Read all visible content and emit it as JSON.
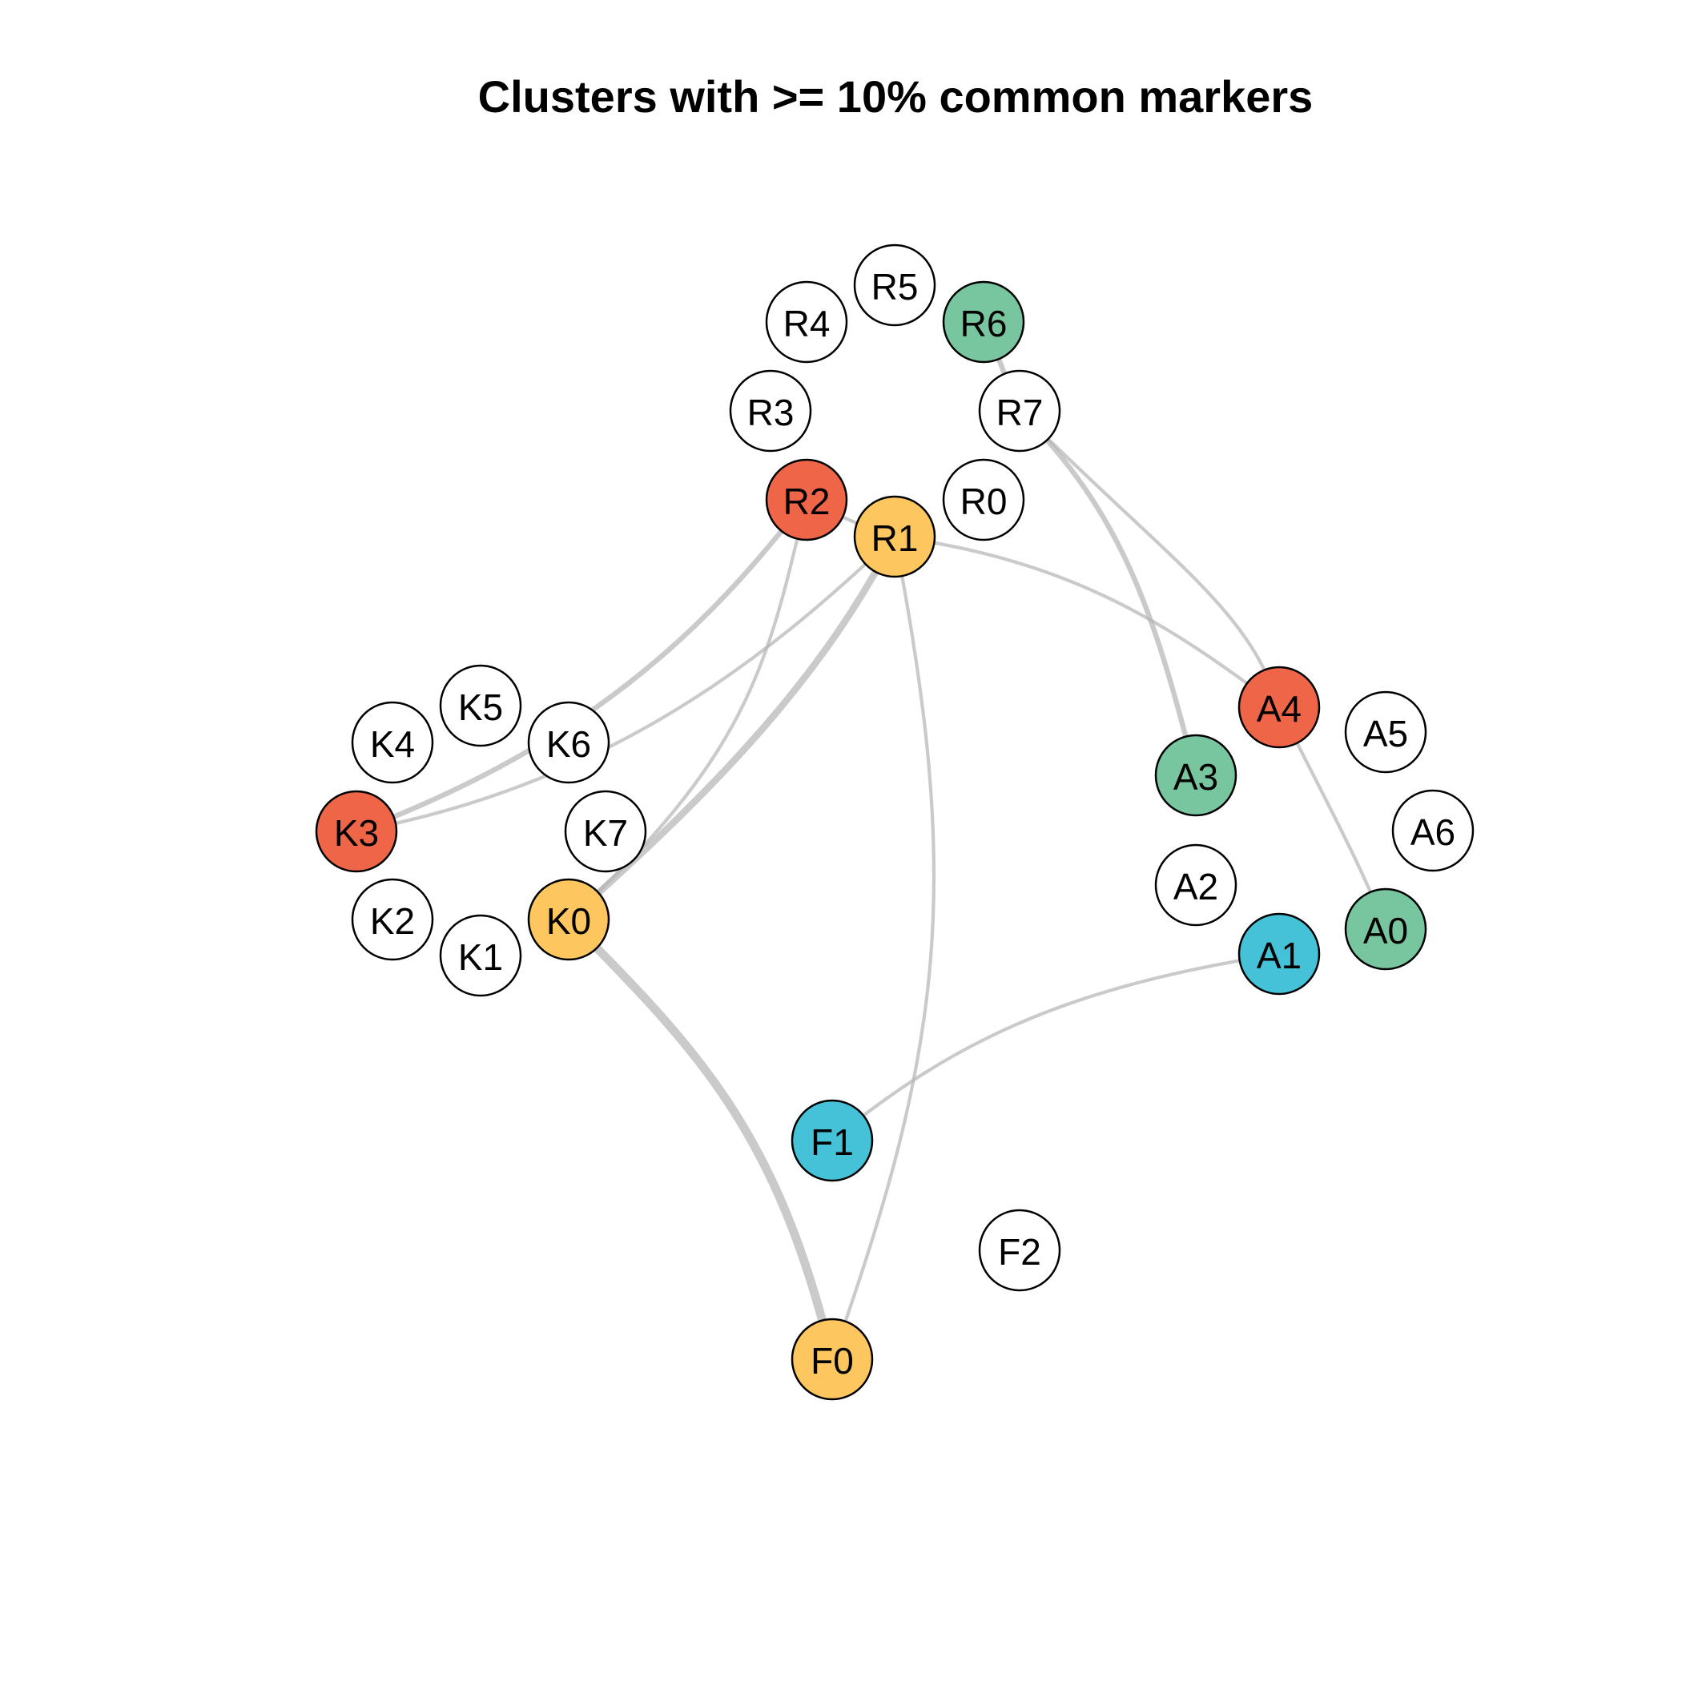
{
  "title": "Clusters with >= 10% common markers",
  "colors": {
    "white": "#ffffff",
    "red": "#ee6548",
    "yellow": "#fdc65e",
    "green": "#78c6a0",
    "cyan": "#45c1d8",
    "edge": "#b3b3b3"
  },
  "nodes": [
    {
      "id": "R0",
      "color": "white"
    },
    {
      "id": "R1",
      "color": "yellow"
    },
    {
      "id": "R2",
      "color": "red"
    },
    {
      "id": "R3",
      "color": "white"
    },
    {
      "id": "R4",
      "color": "white"
    },
    {
      "id": "R5",
      "color": "white"
    },
    {
      "id": "R6",
      "color": "green"
    },
    {
      "id": "R7",
      "color": "white"
    },
    {
      "id": "K0",
      "color": "yellow"
    },
    {
      "id": "K1",
      "color": "white"
    },
    {
      "id": "K2",
      "color": "white"
    },
    {
      "id": "K3",
      "color": "red"
    },
    {
      "id": "K4",
      "color": "white"
    },
    {
      "id": "K5",
      "color": "white"
    },
    {
      "id": "K6",
      "color": "white"
    },
    {
      "id": "K7",
      "color": "white"
    },
    {
      "id": "A0",
      "color": "green"
    },
    {
      "id": "A1",
      "color": "cyan"
    },
    {
      "id": "A2",
      "color": "white"
    },
    {
      "id": "A3",
      "color": "green"
    },
    {
      "id": "A4",
      "color": "red"
    },
    {
      "id": "A5",
      "color": "white"
    },
    {
      "id": "A6",
      "color": "white"
    },
    {
      "id": "F0",
      "color": "yellow"
    },
    {
      "id": "F1",
      "color": "cyan"
    },
    {
      "id": "F2",
      "color": "white"
    }
  ],
  "edges": [
    {
      "from": "R2",
      "to": "K3",
      "weight": 2
    },
    {
      "from": "R1",
      "to": "K3",
      "weight": 1
    },
    {
      "from": "R2",
      "to": "K0",
      "weight": 1
    },
    {
      "from": "R1",
      "to": "K0",
      "weight": 3
    },
    {
      "from": "R2",
      "to": "R1",
      "weight": 1
    },
    {
      "from": "R1",
      "to": "A4",
      "weight": 1
    },
    {
      "from": "R1",
      "to": "F0",
      "weight": 1
    },
    {
      "from": "R7",
      "to": "A3",
      "weight": 2
    },
    {
      "from": "R6",
      "to": "R7",
      "weight": 2
    },
    {
      "from": "R7",
      "to": "A4",
      "weight": 1
    },
    {
      "from": "A4",
      "to": "A0",
      "weight": 1
    },
    {
      "from": "A1",
      "to": "F1",
      "weight": 1
    },
    {
      "from": "K0",
      "to": "F0",
      "weight": 4
    }
  ]
}
